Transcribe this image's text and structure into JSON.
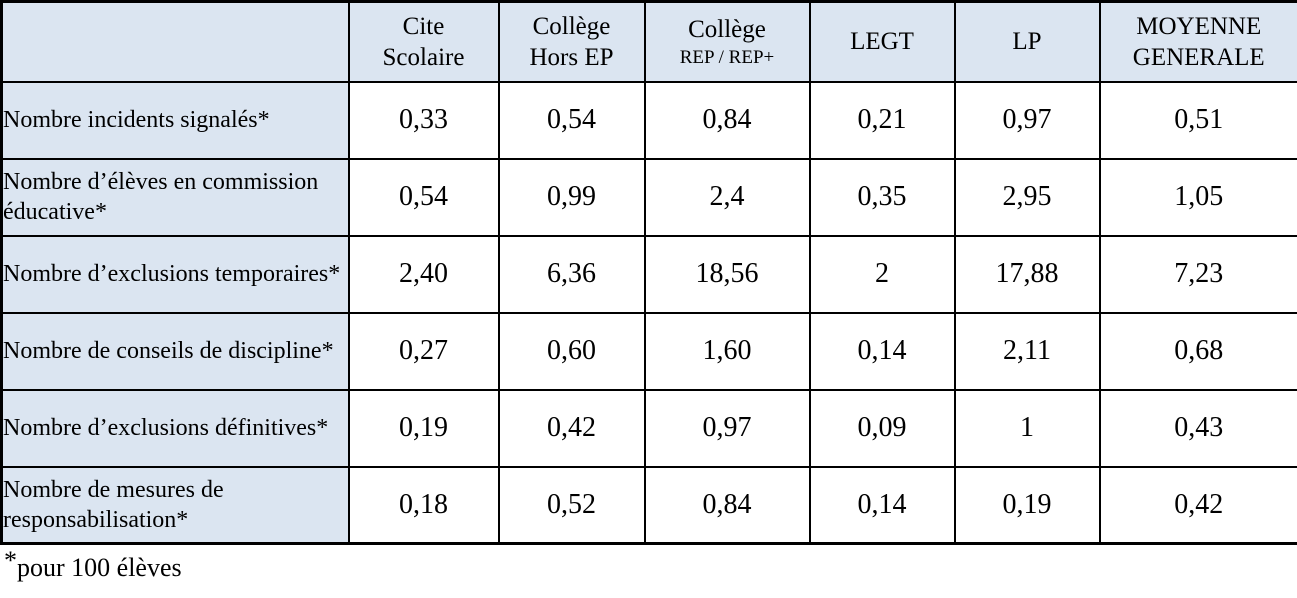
{
  "colors": {
    "header_bg": "#dbe5f1",
    "border": "#000000",
    "cell_bg": "#ffffff",
    "text": "#000000"
  },
  "table": {
    "columns": [
      {
        "line1": "Cite",
        "line2": "Scolaire",
        "small_line2": false
      },
      {
        "line1": "Collège",
        "line2": "Hors EP",
        "small_line2": false
      },
      {
        "line1": "Collège",
        "line2": "REP / REP+",
        "small_line2": true
      },
      {
        "line1": "LEGT",
        "line2": "",
        "small_line2": false
      },
      {
        "line1": "LP",
        "line2": "",
        "small_line2": false
      },
      {
        "line1": "MOYENNE",
        "line2": "GENERALE",
        "small_line2": false
      }
    ],
    "rows": [
      {
        "label": "Nombre incidents signalés*",
        "values": [
          "0,33",
          "0,54",
          "0,84",
          "0,21",
          "0,97",
          "0,51"
        ]
      },
      {
        "label": "Nombre d’élèves en commission éducative*",
        "values": [
          "0,54",
          "0,99",
          "2,4",
          "0,35",
          "2,95",
          "1,05"
        ]
      },
      {
        "label": "Nombre d’exclusions temporaires*",
        "values": [
          "2,40",
          "6,36",
          "18,56",
          "2",
          "17,88",
          "7,23"
        ]
      },
      {
        "label": "Nombre de conseils de discipline*",
        "values": [
          "0,27",
          "0,60",
          "1,60",
          "0,14",
          "2,11",
          "0,68"
        ]
      },
      {
        "label": "Nombre d’exclusions définitives*",
        "values": [
          "0,19",
          "0,42",
          "0,97",
          "0,09",
          "1",
          "0,43"
        ]
      },
      {
        "label": "Nombre de mesures de responsabilisation*",
        "values": [
          "0,18",
          "0,52",
          "0,84",
          "0,14",
          "0,19",
          "0,42"
        ]
      }
    ]
  },
  "footnote": {
    "marker": "*",
    "text": "pour 100 élèves"
  },
  "chart_data": {
    "type": "table",
    "title": "",
    "categories": [
      "Cite Scolaire",
      "Collège Hors EP",
      "Collège REP / REP+",
      "LEGT",
      "LP",
      "MOYENNE GENERALE"
    ],
    "series": [
      {
        "name": "Nombre incidents signalés*",
        "values": [
          0.33,
          0.54,
          0.84,
          0.21,
          0.97,
          0.51
        ]
      },
      {
        "name": "Nombre d’élèves en commission éducative*",
        "values": [
          0.54,
          0.99,
          2.4,
          0.35,
          2.95,
          1.05
        ]
      },
      {
        "name": "Nombre d’exclusions temporaires*",
        "values": [
          2.4,
          6.36,
          18.56,
          2,
          17.88,
          7.23
        ]
      },
      {
        "name": "Nombre de conseils de discipline*",
        "values": [
          0.27,
          0.6,
          1.6,
          0.14,
          2.11,
          0.68
        ]
      },
      {
        "name": "Nombre d’exclusions définitives*",
        "values": [
          0.19,
          0.42,
          0.97,
          0.09,
          1,
          0.43
        ]
      },
      {
        "name": "Nombre de mesures de responsabilisation*",
        "values": [
          0.18,
          0.52,
          0.84,
          0.14,
          0.19,
          0.42
        ]
      }
    ],
    "footnote": "*pour 100 élèves"
  }
}
